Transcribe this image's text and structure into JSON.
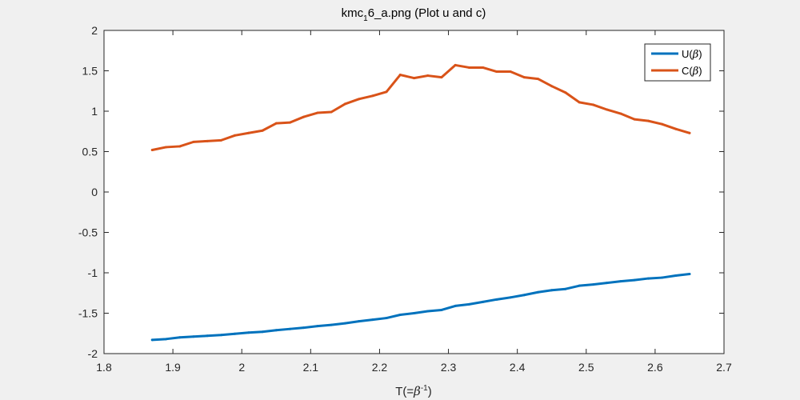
{
  "chart_data": {
    "type": "line",
    "title": {
      "prefix": "kmc",
      "subscript": "1",
      "suffix": "6_a.png (Plot u and c)"
    },
    "xlabel": {
      "prefix": "T(=",
      "symbol": "β",
      "superscript": "-1",
      "suffix": ")"
    },
    "ylabel": "",
    "xlim": [
      1.8,
      2.7
    ],
    "ylim": [
      -2,
      2
    ],
    "xticks": [
      1.8,
      1.9,
      2.0,
      2.1,
      2.2,
      2.3,
      2.4,
      2.5,
      2.6,
      2.7
    ],
    "xtick_labels": [
      "1.8",
      "1.9",
      "2",
      "2.1",
      "2.2",
      "2.3",
      "2.4",
      "2.5",
      "2.6",
      "2.7"
    ],
    "yticks": [
      -2,
      -1.5,
      -1,
      -0.5,
      0,
      0.5,
      1,
      1.5,
      2
    ],
    "ytick_labels": [
      "-2",
      "-1.5",
      "-1",
      "-0.5",
      "0",
      "0.5",
      "1",
      "1.5",
      "2"
    ],
    "grid": false,
    "legend_position": "top-right",
    "x": [
      1.87,
      1.89,
      1.91,
      1.93,
      1.95,
      1.97,
      1.99,
      2.01,
      2.03,
      2.05,
      2.07,
      2.09,
      2.11,
      2.13,
      2.15,
      2.17,
      2.19,
      2.21,
      2.23,
      2.25,
      2.27,
      2.29,
      2.31,
      2.33,
      2.35,
      2.37,
      2.39,
      2.41,
      2.43,
      2.45,
      2.47,
      2.49,
      2.51,
      2.53,
      2.55,
      2.57,
      2.59,
      2.61,
      2.63,
      2.65
    ],
    "series": [
      {
        "legend_prefix": "U(",
        "legend_symbol": "β",
        "legend_suffix": ")",
        "color": "#0072bd",
        "values": [
          -1.83,
          -1.82,
          -1.8,
          -1.79,
          -1.78,
          -1.77,
          -1.755,
          -1.74,
          -1.73,
          -1.71,
          -1.695,
          -1.68,
          -1.66,
          -1.645,
          -1.625,
          -1.6,
          -1.58,
          -1.56,
          -1.52,
          -1.5,
          -1.475,
          -1.46,
          -1.41,
          -1.39,
          -1.36,
          -1.33,
          -1.305,
          -1.275,
          -1.24,
          -1.215,
          -1.2,
          -1.16,
          -1.145,
          -1.125,
          -1.105,
          -1.09,
          -1.07,
          -1.06,
          -1.035,
          -1.015
        ]
      },
      {
        "legend_prefix": "C(",
        "legend_symbol": "β",
        "legend_suffix": ")",
        "color": "#d95319",
        "values": [
          0.52,
          0.555,
          0.565,
          0.62,
          0.63,
          0.64,
          0.7,
          0.73,
          0.76,
          0.85,
          0.86,
          0.93,
          0.98,
          0.99,
          1.09,
          1.15,
          1.19,
          1.24,
          1.45,
          1.41,
          1.44,
          1.42,
          1.57,
          1.54,
          1.54,
          1.49,
          1.49,
          1.42,
          1.4,
          1.31,
          1.23,
          1.11,
          1.08,
          1.02,
          0.97,
          0.9,
          0.88,
          0.84,
          0.78,
          0.73
        ]
      }
    ]
  }
}
